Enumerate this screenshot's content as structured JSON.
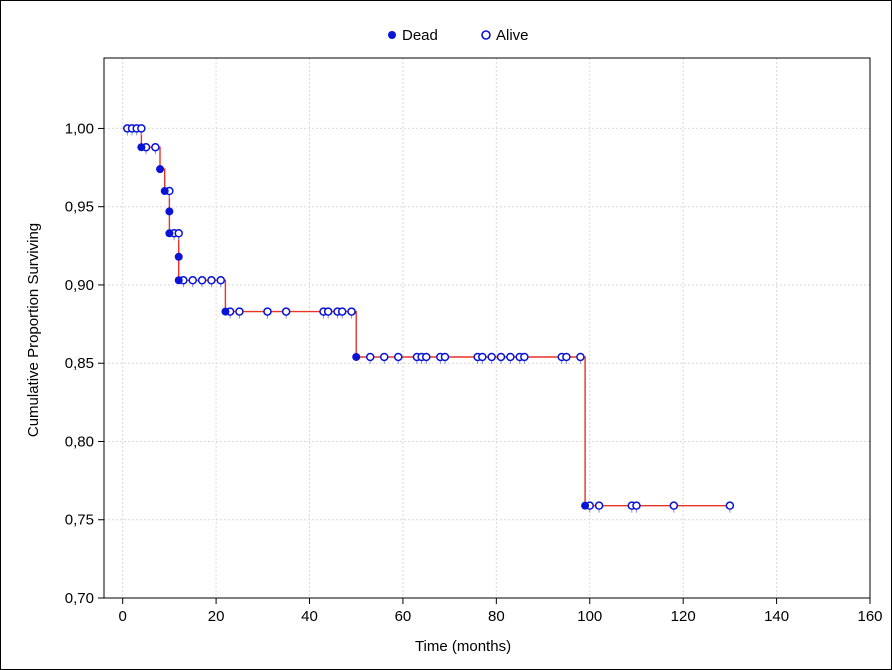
{
  "chart_data": {
    "type": "line",
    "subtype": "kaplan-meier survival curve",
    "title": "",
    "xlabel": "Time (months)",
    "ylabel": "Cumulative Proportion Surviving",
    "xlim": [
      -4,
      160
    ],
    "ylim": [
      0.7,
      1.045
    ],
    "x_ticks": [
      0,
      20,
      40,
      60,
      80,
      100,
      120,
      140,
      160
    ],
    "x_tick_labels": [
      "0",
      "20",
      "40",
      "60",
      "80",
      "100",
      "120",
      "140",
      "160"
    ],
    "y_ticks": [
      0.7,
      0.75,
      0.8,
      0.85,
      0.9,
      0.95,
      1.0
    ],
    "y_tick_labels": [
      "0,70",
      "0,75",
      "0,80",
      "0,85",
      "0,90",
      "0,95",
      "1,00"
    ],
    "grid": true,
    "legend_position": "top-center",
    "colors": {
      "curve": "#e8322a",
      "marker": "#0a14d6",
      "grid": "#d9d9d9"
    },
    "series": [
      {
        "name": "Dead",
        "marker": "filled-circle",
        "points": [
          {
            "x": 4,
            "y": 0.988
          },
          {
            "x": 8,
            "y": 0.974
          },
          {
            "x": 9,
            "y": 0.96
          },
          {
            "x": 10,
            "y": 0.947
          },
          {
            "x": 10,
            "y": 0.933
          },
          {
            "x": 12,
            "y": 0.918
          },
          {
            "x": 12,
            "y": 0.903
          },
          {
            "x": 22,
            "y": 0.883
          },
          {
            "x": 50,
            "y": 0.854
          },
          {
            "x": 99,
            "y": 0.759
          }
        ]
      },
      {
        "name": "Alive",
        "marker": "open-circle",
        "points": [
          {
            "x": 1,
            "y": 1.0
          },
          {
            "x": 2,
            "y": 1.0
          },
          {
            "x": 3,
            "y": 1.0
          },
          {
            "x": 4,
            "y": 1.0
          },
          {
            "x": 5,
            "y": 0.988
          },
          {
            "x": 7,
            "y": 0.988
          },
          {
            "x": 10,
            "y": 0.96
          },
          {
            "x": 11,
            "y": 0.933
          },
          {
            "x": 12,
            "y": 0.933
          },
          {
            "x": 13,
            "y": 0.903
          },
          {
            "x": 15,
            "y": 0.903
          },
          {
            "x": 17,
            "y": 0.903
          },
          {
            "x": 19,
            "y": 0.903
          },
          {
            "x": 21,
            "y": 0.903
          },
          {
            "x": 23,
            "y": 0.883
          },
          {
            "x": 25,
            "y": 0.883
          },
          {
            "x": 31,
            "y": 0.883
          },
          {
            "x": 35,
            "y": 0.883
          },
          {
            "x": 43,
            "y": 0.883
          },
          {
            "x": 44,
            "y": 0.883
          },
          {
            "x": 46,
            "y": 0.883
          },
          {
            "x": 47,
            "y": 0.883
          },
          {
            "x": 49,
            "y": 0.883
          },
          {
            "x": 53,
            "y": 0.854
          },
          {
            "x": 56,
            "y": 0.854
          },
          {
            "x": 59,
            "y": 0.854
          },
          {
            "x": 63,
            "y": 0.854
          },
          {
            "x": 64,
            "y": 0.854
          },
          {
            "x": 65,
            "y": 0.854
          },
          {
            "x": 68,
            "y": 0.854
          },
          {
            "x": 69,
            "y": 0.854
          },
          {
            "x": 76,
            "y": 0.854
          },
          {
            "x": 77,
            "y": 0.854
          },
          {
            "x": 79,
            "y": 0.854
          },
          {
            "x": 81,
            "y": 0.854
          },
          {
            "x": 83,
            "y": 0.854
          },
          {
            "x": 85,
            "y": 0.854
          },
          {
            "x": 86,
            "y": 0.854
          },
          {
            "x": 94,
            "y": 0.854
          },
          {
            "x": 95,
            "y": 0.854
          },
          {
            "x": 98,
            "y": 0.854
          },
          {
            "x": 100,
            "y": 0.759
          },
          {
            "x": 102,
            "y": 0.759
          },
          {
            "x": 109,
            "y": 0.759
          },
          {
            "x": 110,
            "y": 0.759
          },
          {
            "x": 118,
            "y": 0.759
          },
          {
            "x": 130,
            "y": 0.759
          }
        ]
      }
    ],
    "step_curve": [
      {
        "x": 0,
        "y": 1.0
      },
      {
        "x": 4,
        "y": 1.0
      },
      {
        "x": 4,
        "y": 0.988
      },
      {
        "x": 8,
        "y": 0.988
      },
      {
        "x": 8,
        "y": 0.974
      },
      {
        "x": 9,
        "y": 0.974
      },
      {
        "x": 9,
        "y": 0.96
      },
      {
        "x": 10,
        "y": 0.96
      },
      {
        "x": 10,
        "y": 0.933
      },
      {
        "x": 12,
        "y": 0.933
      },
      {
        "x": 12,
        "y": 0.903
      },
      {
        "x": 22,
        "y": 0.903
      },
      {
        "x": 22,
        "y": 0.883
      },
      {
        "x": 50,
        "y": 0.883
      },
      {
        "x": 50,
        "y": 0.854
      },
      {
        "x": 99,
        "y": 0.854
      },
      {
        "x": 99,
        "y": 0.759
      },
      {
        "x": 130,
        "y": 0.759
      }
    ]
  }
}
